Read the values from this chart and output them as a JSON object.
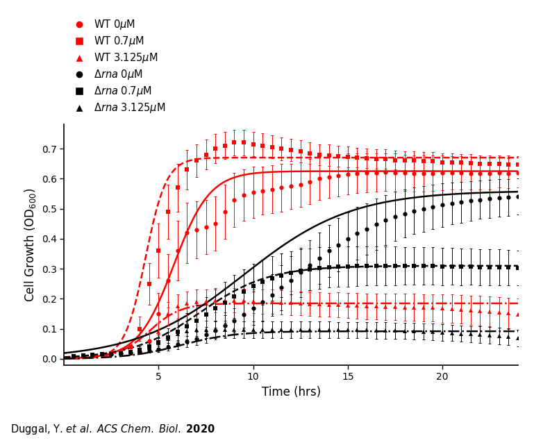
{
  "xlabel": "Time (hrs)",
  "ylabel": "Cell Growth (OD$_{600}$)",
  "xlim": [
    0,
    24
  ],
  "ylim": [
    -0.02,
    0.78
  ],
  "yticks": [
    0.0,
    0.1,
    0.2,
    0.3,
    0.4,
    0.5,
    0.6,
    0.7
  ],
  "xticks": [
    5,
    10,
    15,
    20
  ],
  "red": "#FF0000",
  "black": "#000000",
  "wt_0_params": {
    "K": 0.625,
    "r": 1.05,
    "t0": 5.8
  },
  "wt_07_params": {
    "K": 0.67,
    "r": 1.8,
    "t0": 4.3
  },
  "wt_3125_params": {
    "K": 0.185,
    "r": 1.2,
    "t0": 4.5
  },
  "drna_0_params": {
    "K": 0.56,
    "r": 0.35,
    "t0": 9.5
  },
  "drna_07_params": {
    "K": 0.31,
    "r": 0.55,
    "t0": 7.2
  },
  "drna_3125_params": {
    "K": 0.092,
    "r": 0.7,
    "t0": 6.2
  },
  "wt_0_t": [
    0.5,
    1.0,
    1.5,
    2.0,
    2.5,
    3.0,
    3.5,
    4.0,
    4.5,
    5.0,
    5.5,
    6.0,
    6.5,
    7.0,
    7.5,
    8.0,
    8.5,
    9.0,
    9.5,
    10.0,
    10.5,
    11.0,
    11.5,
    12.0,
    12.5,
    13.0,
    13.5,
    14.0,
    14.5,
    15.0,
    15.5,
    16.0,
    16.5,
    17.0,
    17.5,
    18.0,
    18.5,
    19.0,
    19.5,
    20.0,
    20.5,
    21.0,
    21.5,
    22.0,
    22.5,
    23.0,
    23.5,
    24.0
  ],
  "wt_0_y": [
    0.01,
    0.012,
    0.013,
    0.015,
    0.016,
    0.018,
    0.02,
    0.025,
    0.06,
    0.15,
    0.26,
    0.36,
    0.42,
    0.43,
    0.44,
    0.45,
    0.49,
    0.53,
    0.545,
    0.555,
    0.56,
    0.565,
    0.57,
    0.575,
    0.58,
    0.59,
    0.6,
    0.605,
    0.61,
    0.615,
    0.618,
    0.62,
    0.62,
    0.622,
    0.62,
    0.62,
    0.618,
    0.618,
    0.618,
    0.62,
    0.62,
    0.62,
    0.618,
    0.618,
    0.618,
    0.62,
    0.618,
    0.62
  ],
  "wt_0_yerr": [
    0.003,
    0.003,
    0.003,
    0.004,
    0.004,
    0.005,
    0.005,
    0.01,
    0.03,
    0.07,
    0.09,
    0.1,
    0.1,
    0.095,
    0.09,
    0.09,
    0.09,
    0.09,
    0.085,
    0.085,
    0.08,
    0.08,
    0.08,
    0.075,
    0.075,
    0.075,
    0.07,
    0.07,
    0.07,
    0.068,
    0.065,
    0.065,
    0.063,
    0.063,
    0.063,
    0.06,
    0.06,
    0.06,
    0.058,
    0.058,
    0.055,
    0.055,
    0.055,
    0.053,
    0.053,
    0.05,
    0.05,
    0.05
  ],
  "wt_07_t": [
    0.5,
    1.0,
    1.5,
    2.0,
    2.5,
    3.0,
    3.5,
    4.0,
    4.5,
    5.0,
    5.5,
    6.0,
    6.5,
    7.0,
    7.5,
    8.0,
    8.5,
    9.0,
    9.5,
    10.0,
    10.5,
    11.0,
    11.5,
    12.0,
    12.5,
    13.0,
    13.5,
    14.0,
    14.5,
    15.0,
    15.5,
    16.0,
    16.5,
    17.0,
    17.5,
    18.0,
    18.5,
    19.0,
    19.5,
    20.0,
    20.5,
    21.0,
    21.5,
    22.0,
    22.5,
    23.0,
    23.5,
    24.0
  ],
  "wt_07_y": [
    0.01,
    0.012,
    0.013,
    0.015,
    0.018,
    0.025,
    0.04,
    0.1,
    0.25,
    0.36,
    0.49,
    0.57,
    0.63,
    0.66,
    0.68,
    0.7,
    0.71,
    0.72,
    0.72,
    0.715,
    0.71,
    0.705,
    0.7,
    0.695,
    0.69,
    0.685,
    0.68,
    0.678,
    0.675,
    0.672,
    0.67,
    0.668,
    0.665,
    0.665,
    0.662,
    0.66,
    0.66,
    0.658,
    0.658,
    0.655,
    0.655,
    0.653,
    0.652,
    0.65,
    0.65,
    0.65,
    0.648,
    0.648
  ],
  "wt_07_yerr": [
    0.003,
    0.003,
    0.004,
    0.005,
    0.005,
    0.008,
    0.012,
    0.04,
    0.07,
    0.09,
    0.09,
    0.08,
    0.065,
    0.055,
    0.05,
    0.048,
    0.045,
    0.043,
    0.042,
    0.04,
    0.04,
    0.038,
    0.038,
    0.037,
    0.037,
    0.036,
    0.035,
    0.035,
    0.034,
    0.034,
    0.033,
    0.033,
    0.032,
    0.032,
    0.032,
    0.031,
    0.031,
    0.03,
    0.03,
    0.03,
    0.029,
    0.029,
    0.029,
    0.028,
    0.028,
    0.028,
    0.028,
    0.027
  ],
  "wt_3125_t": [
    0.5,
    1.0,
    1.5,
    2.0,
    2.5,
    3.0,
    3.5,
    4.0,
    4.5,
    5.0,
    5.5,
    6.0,
    6.5,
    7.0,
    7.5,
    8.0,
    8.5,
    9.0,
    9.5,
    10.0,
    10.5,
    11.0,
    11.5,
    12.0,
    12.5,
    13.0,
    13.5,
    14.0,
    14.5,
    15.0,
    15.5,
    16.0,
    16.5,
    17.0,
    17.5,
    18.0,
    18.5,
    19.0,
    19.5,
    20.0,
    20.5,
    21.0,
    21.5,
    22.0,
    22.5,
    23.0,
    23.5,
    24.0
  ],
  "wt_3125_y": [
    0.01,
    0.012,
    0.013,
    0.015,
    0.016,
    0.018,
    0.02,
    0.025,
    0.04,
    0.09,
    0.15,
    0.175,
    0.185,
    0.19,
    0.192,
    0.195,
    0.195,
    0.195,
    0.193,
    0.192,
    0.19,
    0.19,
    0.188,
    0.186,
    0.185,
    0.183,
    0.182,
    0.18,
    0.18,
    0.178,
    0.177,
    0.175,
    0.175,
    0.174,
    0.173,
    0.172,
    0.172,
    0.17,
    0.17,
    0.168,
    0.167,
    0.165,
    0.162,
    0.16,
    0.158,
    0.155,
    0.152,
    0.148
  ],
  "wt_3125_yerr": [
    0.003,
    0.003,
    0.003,
    0.004,
    0.004,
    0.005,
    0.006,
    0.008,
    0.015,
    0.03,
    0.04,
    0.04,
    0.04,
    0.04,
    0.04,
    0.04,
    0.04,
    0.04,
    0.04,
    0.04,
    0.04,
    0.04,
    0.04,
    0.04,
    0.04,
    0.04,
    0.04,
    0.04,
    0.042,
    0.042,
    0.042,
    0.043,
    0.043,
    0.044,
    0.044,
    0.045,
    0.045,
    0.046,
    0.046,
    0.047,
    0.048,
    0.048,
    0.049,
    0.05,
    0.05,
    0.051,
    0.052,
    0.052
  ],
  "drna_0_t": [
    0.5,
    1.0,
    1.5,
    2.0,
    2.5,
    3.0,
    3.5,
    4.0,
    4.5,
    5.0,
    5.5,
    6.0,
    6.5,
    7.0,
    7.5,
    8.0,
    8.5,
    9.0,
    9.5,
    10.0,
    10.5,
    11.0,
    11.5,
    12.0,
    12.5,
    13.0,
    13.5,
    14.0,
    14.5,
    15.0,
    15.5,
    16.0,
    16.5,
    17.0,
    17.5,
    18.0,
    18.5,
    19.0,
    19.5,
    20.0,
    20.5,
    21.0,
    21.5,
    22.0,
    22.5,
    23.0,
    23.5,
    24.0
  ],
  "drna_0_y": [
    0.01,
    0.012,
    0.013,
    0.015,
    0.016,
    0.018,
    0.02,
    0.023,
    0.028,
    0.033,
    0.04,
    0.048,
    0.058,
    0.068,
    0.08,
    0.095,
    0.11,
    0.128,
    0.148,
    0.168,
    0.19,
    0.213,
    0.237,
    0.262,
    0.288,
    0.312,
    0.335,
    0.36,
    0.38,
    0.4,
    0.418,
    0.432,
    0.448,
    0.462,
    0.474,
    0.484,
    0.493,
    0.5,
    0.506,
    0.512,
    0.518,
    0.522,
    0.526,
    0.53,
    0.533,
    0.536,
    0.538,
    0.54
  ],
  "drna_0_yerr": [
    0.003,
    0.003,
    0.003,
    0.004,
    0.004,
    0.005,
    0.005,
    0.006,
    0.008,
    0.01,
    0.012,
    0.015,
    0.018,
    0.022,
    0.026,
    0.03,
    0.035,
    0.04,
    0.045,
    0.055,
    0.062,
    0.07,
    0.075,
    0.08,
    0.082,
    0.084,
    0.085,
    0.087,
    0.088,
    0.088,
    0.087,
    0.086,
    0.085,
    0.083,
    0.082,
    0.08,
    0.078,
    0.076,
    0.074,
    0.072,
    0.07,
    0.068,
    0.066,
    0.064,
    0.063,
    0.062,
    0.061,
    0.06
  ],
  "drna_07_t": [
    0.5,
    1.0,
    1.5,
    2.0,
    2.5,
    3.0,
    3.5,
    4.0,
    4.5,
    5.0,
    5.5,
    6.0,
    6.5,
    7.0,
    7.5,
    8.0,
    8.5,
    9.0,
    9.5,
    10.0,
    10.5,
    11.0,
    11.5,
    12.0,
    12.5,
    13.0,
    13.5,
    14.0,
    14.5,
    15.0,
    15.5,
    16.0,
    16.5,
    17.0,
    17.5,
    18.0,
    18.5,
    19.0,
    19.5,
    20.0,
    20.5,
    21.0,
    21.5,
    22.0,
    22.5,
    23.0,
    23.5,
    24.0
  ],
  "drna_07_y": [
    0.01,
    0.012,
    0.013,
    0.015,
    0.016,
    0.018,
    0.022,
    0.03,
    0.042,
    0.056,
    0.072,
    0.09,
    0.108,
    0.128,
    0.148,
    0.168,
    0.188,
    0.208,
    0.225,
    0.242,
    0.256,
    0.268,
    0.278,
    0.286,
    0.293,
    0.298,
    0.302,
    0.305,
    0.307,
    0.308,
    0.309,
    0.31,
    0.31,
    0.31,
    0.31,
    0.31,
    0.31,
    0.31,
    0.31,
    0.308,
    0.308,
    0.307,
    0.307,
    0.306,
    0.305,
    0.305,
    0.304,
    0.303
  ],
  "drna_07_yerr": [
    0.003,
    0.003,
    0.004,
    0.004,
    0.005,
    0.006,
    0.008,
    0.012,
    0.018,
    0.024,
    0.03,
    0.038,
    0.044,
    0.052,
    0.058,
    0.064,
    0.068,
    0.072,
    0.074,
    0.075,
    0.075,
    0.074,
    0.073,
    0.072,
    0.071,
    0.07,
    0.069,
    0.068,
    0.067,
    0.067,
    0.066,
    0.065,
    0.065,
    0.064,
    0.064,
    0.063,
    0.063,
    0.062,
    0.062,
    0.062,
    0.061,
    0.061,
    0.06,
    0.06,
    0.06,
    0.059,
    0.059,
    0.058
  ],
  "drna_3125_t": [
    0.5,
    1.0,
    1.5,
    2.0,
    2.5,
    3.0,
    3.5,
    4.0,
    4.5,
    5.0,
    5.5,
    6.0,
    6.5,
    7.0,
    7.5,
    8.0,
    8.5,
    9.0,
    9.5,
    10.0,
    10.5,
    11.0,
    11.5,
    12.0,
    12.5,
    13.0,
    13.5,
    14.0,
    14.5,
    15.0,
    15.5,
    16.0,
    16.5,
    17.0,
    17.5,
    18.0,
    18.5,
    19.0,
    19.5,
    20.0,
    20.5,
    21.0,
    21.5,
    22.0,
    22.5,
    23.0,
    23.5,
    24.0
  ],
  "drna_3125_y": [
    0.01,
    0.012,
    0.013,
    0.015,
    0.016,
    0.018,
    0.022,
    0.028,
    0.038,
    0.052,
    0.068,
    0.082,
    0.092,
    0.096,
    0.098,
    0.098,
    0.098,
    0.097,
    0.097,
    0.097,
    0.097,
    0.097,
    0.097,
    0.097,
    0.097,
    0.097,
    0.097,
    0.097,
    0.096,
    0.096,
    0.096,
    0.096,
    0.095,
    0.095,
    0.094,
    0.093,
    0.092,
    0.091,
    0.09,
    0.088,
    0.086,
    0.084,
    0.082,
    0.08,
    0.078,
    0.076,
    0.073,
    0.07
  ],
  "drna_3125_yerr": [
    0.003,
    0.003,
    0.004,
    0.004,
    0.005,
    0.006,
    0.008,
    0.01,
    0.014,
    0.018,
    0.022,
    0.025,
    0.027,
    0.028,
    0.028,
    0.028,
    0.028,
    0.028,
    0.028,
    0.028,
    0.028,
    0.028,
    0.028,
    0.028,
    0.028,
    0.027,
    0.027,
    0.027,
    0.027,
    0.027,
    0.027,
    0.027,
    0.027,
    0.027,
    0.027,
    0.027,
    0.027,
    0.027,
    0.027,
    0.027,
    0.027,
    0.027,
    0.027,
    0.028,
    0.028,
    0.028,
    0.028,
    0.028
  ]
}
